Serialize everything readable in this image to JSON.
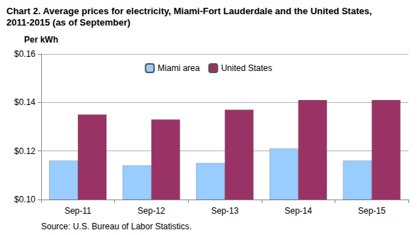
{
  "chart_data": {
    "type": "bar",
    "title": "Chart 2. Average prices for electricity, Miami-Fort Lauderdale and the United States, 2011-2015 (as of September)",
    "y_label": "Per kWh",
    "source": "Source: U.S. Bureau of Labor Statistics.",
    "categories": [
      "Sep-11",
      "Sep-12",
      "Sep-13",
      "Sep-14",
      "Sep-15"
    ],
    "series": [
      {
        "name": "Miami area",
        "color": "#99ccff",
        "values": [
          0.116,
          0.114,
          0.115,
          0.121,
          0.116
        ]
      },
      {
        "name": "United States",
        "color": "#993366",
        "values": [
          0.135,
          0.133,
          0.137,
          0.141,
          0.141
        ]
      }
    ],
    "ylim": [
      0.1,
      0.16
    ],
    "yticks": [
      {
        "value": 0.1,
        "label": "$0.10"
      },
      {
        "value": 0.12,
        "label": "$0.12"
      },
      {
        "value": 0.14,
        "label": "$0.14"
      },
      {
        "value": 0.16,
        "label": "$0.16"
      }
    ],
    "grid": true,
    "legend": "top"
  }
}
